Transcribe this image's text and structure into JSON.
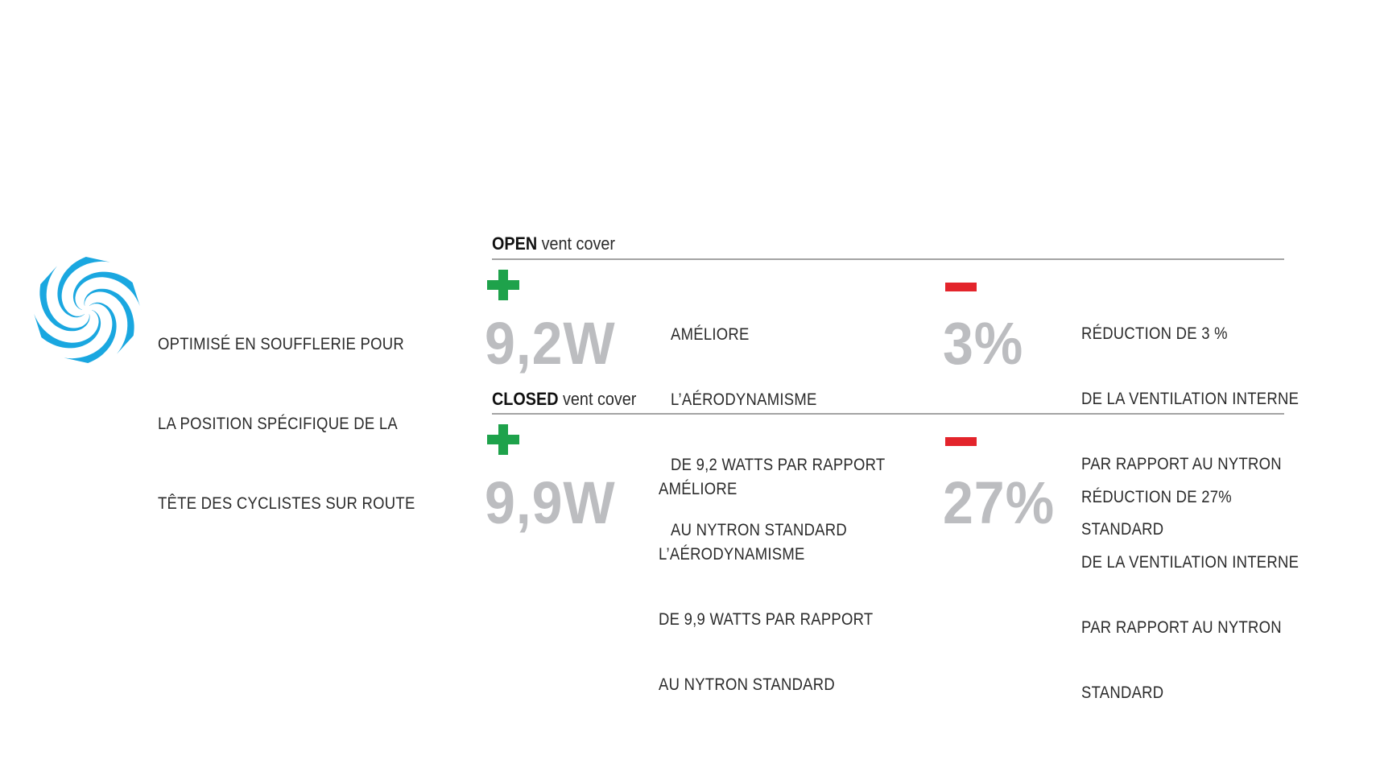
{
  "colors": {
    "swirl": "#1aa7e0",
    "plus": "#1ea24b",
    "minus": "#e3242b",
    "big_number": "#bcbdc0"
  },
  "intro": {
    "icon": "wind-swirl-icon",
    "lines": [
      "OPTIMISÉ EN SOUFFLERIE POUR",
      "LA POSITION SPÉCIFIQUE DE LA",
      "TÊTE DES CYCLISTES SUR ROUTE"
    ]
  },
  "sections": [
    {
      "header_bold": "OPEN",
      "header_rest": " vent cover",
      "gain": {
        "icon": "plus-icon",
        "value": "9,2W",
        "lines": [
          "AMÉLIORE",
          "L’AÉRODYNAMISME",
          "DE 9,2 WATTS PAR RAPPORT",
          "AU NYTRON STANDARD"
        ]
      },
      "loss": {
        "icon": "minus-icon",
        "value": "3%",
        "lines": [
          "RÉDUCTION DE 3 %",
          "DE LA VENTILATION INTERNE",
          "PAR RAPPORT AU NYTRON",
          "STANDARD"
        ]
      }
    },
    {
      "header_bold": "CLOSED",
      "header_rest": " vent cover",
      "gain": {
        "icon": "plus-icon",
        "value": "9,9W",
        "lines": [
          "AMÉLIORE",
          "L’AÉRODYNAMISME",
          "DE 9,9 WATTS PAR RAPPORT",
          "AU NYTRON STANDARD"
        ]
      },
      "loss": {
        "icon": "minus-icon",
        "value": "27%",
        "lines": [
          "RÉDUCTION DE 27%",
          "DE LA VENTILATION INTERNE",
          "PAR RAPPORT AU NYTRON",
          "STANDARD"
        ]
      }
    }
  ]
}
